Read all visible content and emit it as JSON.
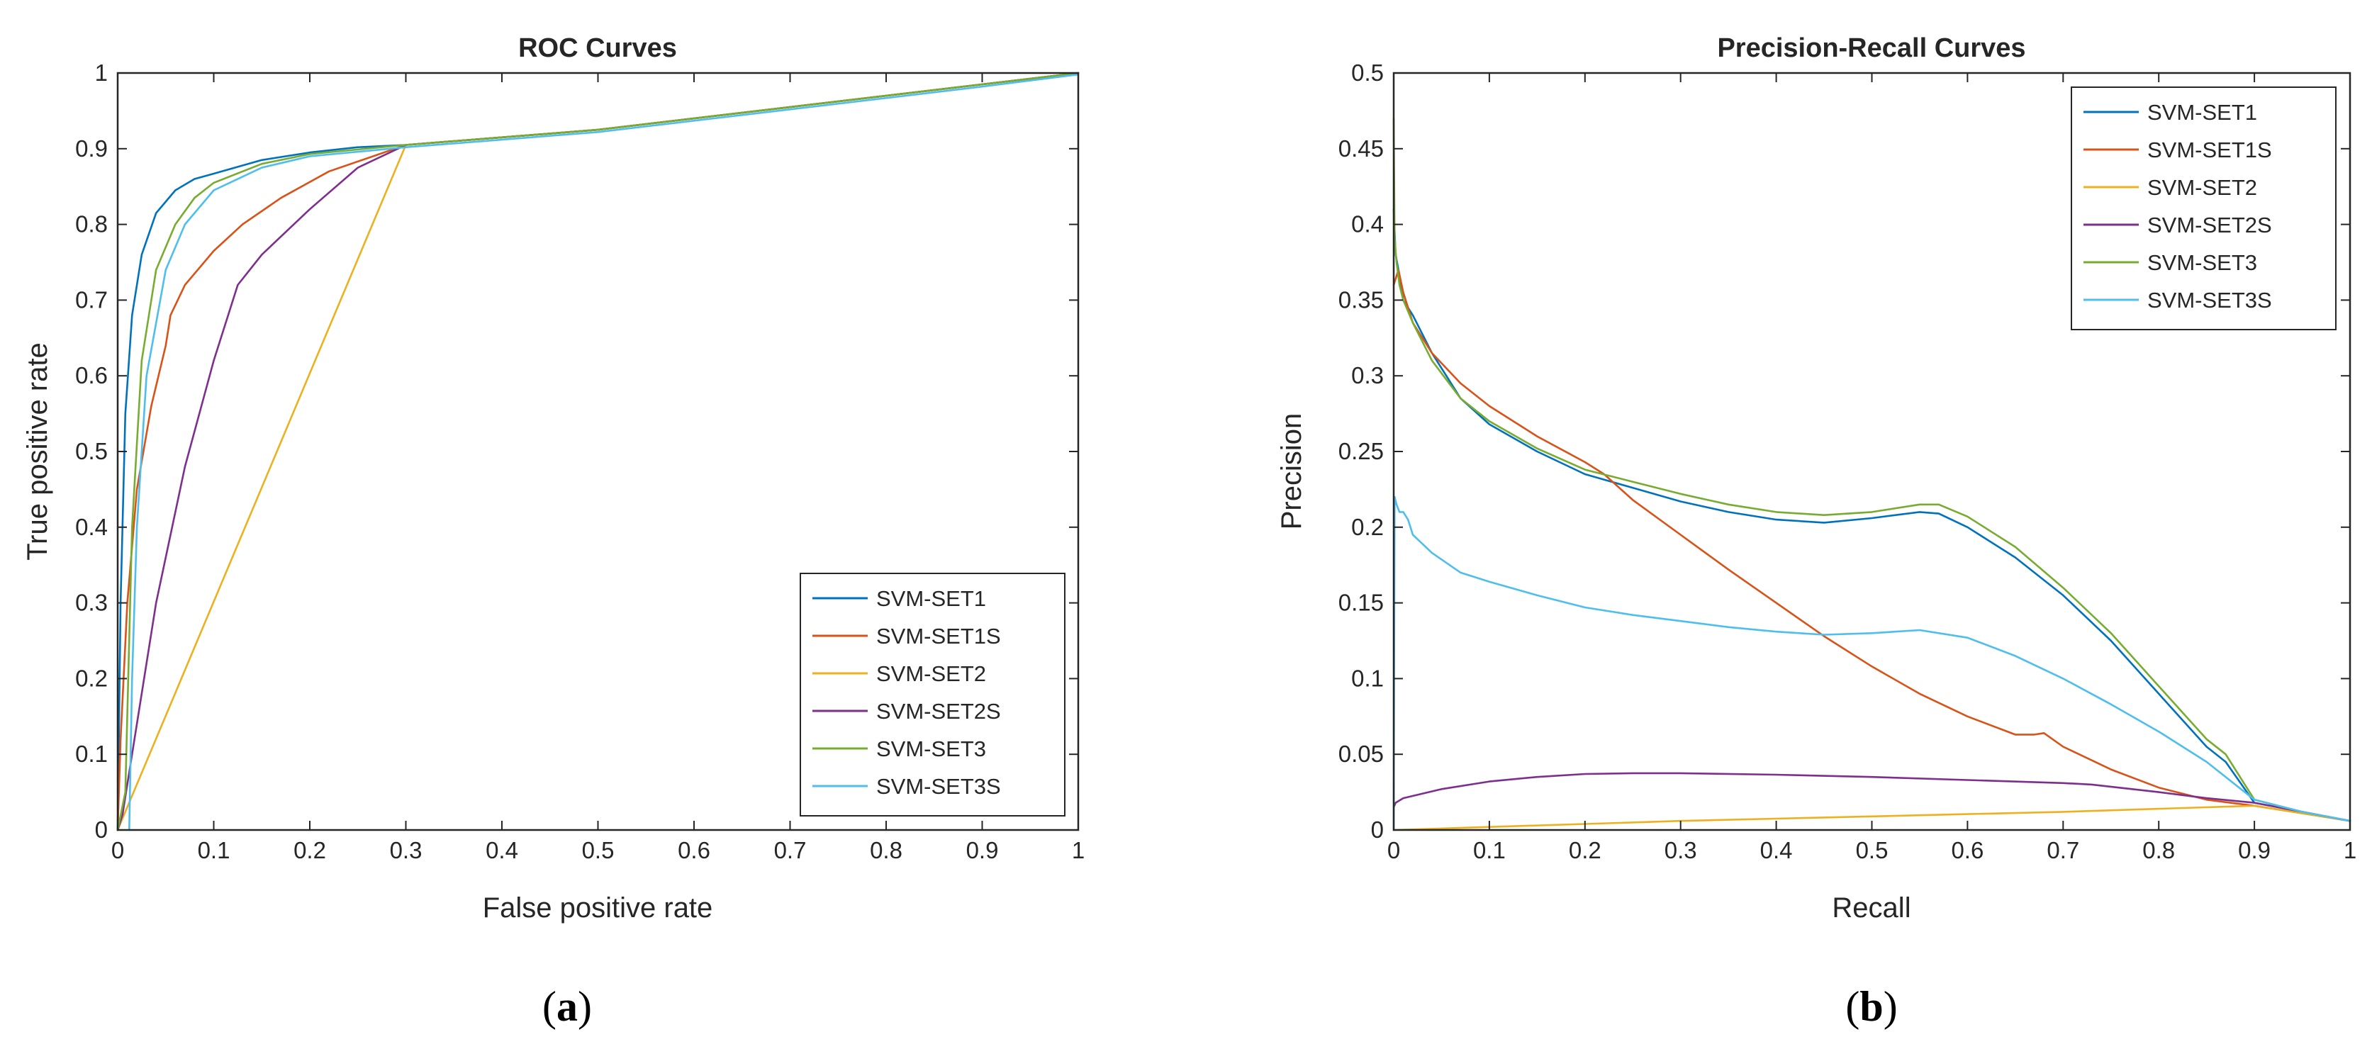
{
  "chart_data": [
    {
      "type": "line",
      "title": "ROC Curves",
      "xlabel": "False positive rate",
      "ylabel": "True positive rate",
      "xlim": [
        0,
        1
      ],
      "ylim": [
        0,
        1
      ],
      "xticks": [
        0,
        0.1,
        0.2,
        0.3,
        0.4,
        0.5,
        0.6,
        0.7,
        0.8,
        0.9,
        1
      ],
      "yticks": [
        0,
        0.1,
        0.2,
        0.3,
        0.4,
        0.5,
        0.6,
        0.7,
        0.8,
        0.9,
        1
      ],
      "xtick_labels": [
        "0",
        "0.1",
        "0.2",
        "0.3",
        "0.4",
        "0.5",
        "0.6",
        "0.7",
        "0.8",
        "0.9",
        "1"
      ],
      "ytick_labels": [
        "0",
        "0.1",
        "0.2",
        "0.3",
        "0.4",
        "0.5",
        "0.6",
        "0.7",
        "0.8",
        "0.9",
        "1"
      ],
      "grid": false,
      "legend_position": "bottom-right",
      "caption": "a",
      "series": [
        {
          "name": "SVM-SET1",
          "color": "#0072BD",
          "x": [
            0,
            0.003,
            0.008,
            0.015,
            0.025,
            0.04,
            0.06,
            0.08,
            0.1,
            0.15,
            0.2,
            0.25,
            0.3,
            0.5,
            0.7,
            0.9,
            1.0
          ],
          "y": [
            0,
            0.3,
            0.55,
            0.68,
            0.76,
            0.815,
            0.845,
            0.86,
            0.867,
            0.885,
            0.895,
            0.902,
            0.905,
            0.925,
            0.955,
            0.985,
            1.0
          ]
        },
        {
          "name": "SVM-SET1S",
          "color": "#D95319",
          "x": [
            0,
            0.003,
            0.01,
            0.02,
            0.035,
            0.05,
            0.055,
            0.07,
            0.1,
            0.13,
            0.17,
            0.22,
            0.3,
            0.5,
            0.7,
            0.9,
            1.0
          ],
          "y": [
            0,
            0.12,
            0.3,
            0.45,
            0.56,
            0.64,
            0.68,
            0.72,
            0.765,
            0.8,
            0.835,
            0.87,
            0.905,
            0.925,
            0.955,
            0.985,
            1.0
          ]
        },
        {
          "name": "SVM-SET2",
          "color": "#EDB120",
          "x": [
            0,
            0.3,
            0.5,
            0.7,
            0.9,
            1.0
          ],
          "y": [
            0,
            0.905,
            0.925,
            0.955,
            0.985,
            1.0
          ]
        },
        {
          "name": "SVM-SET2S",
          "color": "#7E2F8E",
          "x": [
            0,
            0.005,
            0.015,
            0.04,
            0.07,
            0.1,
            0.125,
            0.15,
            0.2,
            0.25,
            0.3,
            0.5,
            0.7,
            0.9,
            1.0
          ],
          "y": [
            0,
            0.02,
            0.1,
            0.3,
            0.48,
            0.62,
            0.72,
            0.76,
            0.82,
            0.875,
            0.905,
            0.925,
            0.955,
            0.985,
            1.0
          ]
        },
        {
          "name": "SVM-SET3",
          "color": "#77AC30",
          "x": [
            0,
            0.008,
            0.015,
            0.025,
            0.04,
            0.06,
            0.08,
            0.1,
            0.15,
            0.2,
            0.3,
            0.5,
            0.7,
            0.9,
            1.0
          ],
          "y": [
            0,
            0.05,
            0.4,
            0.62,
            0.74,
            0.8,
            0.835,
            0.855,
            0.88,
            0.893,
            0.905,
            0.925,
            0.955,
            0.985,
            1.0
          ]
        },
        {
          "name": "SVM-SET3S",
          "color": "#4DBEEE",
          "x": [
            0.012,
            0.015,
            0.02,
            0.03,
            0.05,
            0.07,
            0.1,
            0.15,
            0.2,
            0.3,
            0.5,
            0.7,
            0.9,
            1.0
          ],
          "y": [
            0,
            0.2,
            0.4,
            0.6,
            0.74,
            0.8,
            0.845,
            0.875,
            0.89,
            0.902,
            0.922,
            0.952,
            0.982,
            0.998
          ]
        }
      ]
    },
    {
      "type": "line",
      "title": "Precision-Recall Curves",
      "xlabel": "Recall",
      "ylabel": "Precision",
      "xlim": [
        0,
        1
      ],
      "ylim": [
        0,
        0.5
      ],
      "xticks": [
        0,
        0.1,
        0.2,
        0.3,
        0.4,
        0.5,
        0.6,
        0.7,
        0.8,
        0.9,
        1
      ],
      "yticks": [
        0,
        0.05,
        0.1,
        0.15,
        0.2,
        0.25,
        0.3,
        0.35,
        0.4,
        0.45,
        0.5
      ],
      "xtick_labels": [
        "0",
        "0.1",
        "0.2",
        "0.3",
        "0.4",
        "0.5",
        "0.6",
        "0.7",
        "0.8",
        "0.9",
        "1"
      ],
      "ytick_labels": [
        "0",
        "0.05",
        "0.1",
        "0.15",
        "0.2",
        "0.25",
        "0.3",
        "0.35",
        "0.4",
        "0.45",
        "0.5"
      ],
      "grid": false,
      "legend_position": "top-right",
      "caption": "b",
      "series": [
        {
          "name": "SVM-SET1",
          "color": "#0072BD",
          "x": [
            0,
            0.002,
            0.005,
            0.01,
            0.02,
            0.04,
            0.07,
            0.1,
            0.15,
            0.2,
            0.25,
            0.3,
            0.35,
            0.4,
            0.45,
            0.5,
            0.55,
            0.57,
            0.6,
            0.65,
            0.7,
            0.75,
            0.8,
            0.85,
            0.87,
            0.9,
            0.95,
            1.0
          ],
          "y": [
            0.41,
            0.38,
            0.37,
            0.35,
            0.34,
            0.315,
            0.285,
            0.268,
            0.25,
            0.235,
            0.226,
            0.217,
            0.21,
            0.205,
            0.203,
            0.206,
            0.21,
            0.209,
            0.2,
            0.18,
            0.155,
            0.125,
            0.09,
            0.055,
            0.045,
            0.018,
            0.012,
            0.006
          ]
        },
        {
          "name": "SVM-SET1S",
          "color": "#D95319",
          "x": [
            0,
            0.005,
            0.01,
            0.02,
            0.04,
            0.07,
            0.1,
            0.15,
            0.2,
            0.22,
            0.25,
            0.3,
            0.35,
            0.4,
            0.45,
            0.5,
            0.55,
            0.6,
            0.65,
            0.67,
            0.68,
            0.7,
            0.75,
            0.8,
            0.85,
            0.9,
            0.95,
            1.0
          ],
          "y": [
            0.36,
            0.37,
            0.355,
            0.335,
            0.315,
            0.295,
            0.28,
            0.26,
            0.243,
            0.235,
            0.218,
            0.195,
            0.172,
            0.15,
            0.128,
            0.108,
            0.09,
            0.075,
            0.063,
            0.063,
            0.064,
            0.055,
            0.04,
            0.028,
            0.02,
            0.016,
            0.011,
            0.006
          ]
        },
        {
          "name": "SVM-SET2",
          "color": "#EDB120",
          "x": [
            0,
            0.1,
            0.2,
            0.3,
            0.4,
            0.5,
            0.6,
            0.7,
            0.8,
            0.9,
            0.95,
            1.0
          ],
          "y": [
            0.0,
            0.002,
            0.004,
            0.006,
            0.0075,
            0.009,
            0.0105,
            0.012,
            0.014,
            0.016,
            0.011,
            0.006
          ]
        },
        {
          "name": "SVM-SET2S",
          "color": "#7E2F8E",
          "x": [
            0,
            0.002,
            0.01,
            0.05,
            0.1,
            0.15,
            0.2,
            0.25,
            0.3,
            0.4,
            0.5,
            0.6,
            0.7,
            0.73,
            0.8,
            0.85,
            0.9,
            0.95,
            1.0
          ],
          "y": [
            0.015,
            0.018,
            0.021,
            0.027,
            0.032,
            0.035,
            0.037,
            0.0375,
            0.0375,
            0.0365,
            0.035,
            0.033,
            0.031,
            0.03,
            0.025,
            0.021,
            0.018,
            0.012,
            0.006
          ]
        },
        {
          "name": "SVM-SET3",
          "color": "#77AC30",
          "x": [
            0,
            0.001,
            0.003,
            0.006,
            0.01,
            0.02,
            0.04,
            0.07,
            0.1,
            0.15,
            0.2,
            0.25,
            0.3,
            0.35,
            0.4,
            0.45,
            0.5,
            0.55,
            0.57,
            0.6,
            0.65,
            0.7,
            0.75,
            0.8,
            0.85,
            0.87,
            0.9,
            0.95,
            1.0
          ],
          "y": [
            0.47,
            0.39,
            0.375,
            0.36,
            0.35,
            0.335,
            0.31,
            0.285,
            0.27,
            0.252,
            0.238,
            0.23,
            0.222,
            0.215,
            0.21,
            0.208,
            0.21,
            0.215,
            0.215,
            0.207,
            0.187,
            0.16,
            0.13,
            0.095,
            0.06,
            0.05,
            0.02,
            0.012,
            0.006
          ]
        },
        {
          "name": "SVM-SET3S",
          "color": "#4DBEEE",
          "x": [
            0,
            0.001,
            0.003,
            0.006,
            0.01,
            0.015,
            0.02,
            0.04,
            0.07,
            0.1,
            0.15,
            0.2,
            0.25,
            0.3,
            0.35,
            0.4,
            0.45,
            0.5,
            0.55,
            0.6,
            0.65,
            0.7,
            0.75,
            0.8,
            0.85,
            0.9,
            0.95,
            1.0
          ],
          "y": [
            0.0,
            0.22,
            0.215,
            0.21,
            0.21,
            0.205,
            0.195,
            0.183,
            0.17,
            0.164,
            0.155,
            0.147,
            0.142,
            0.138,
            0.134,
            0.131,
            0.129,
            0.13,
            0.132,
            0.127,
            0.115,
            0.1,
            0.083,
            0.065,
            0.045,
            0.02,
            0.012,
            0.006
          ]
        }
      ]
    }
  ]
}
